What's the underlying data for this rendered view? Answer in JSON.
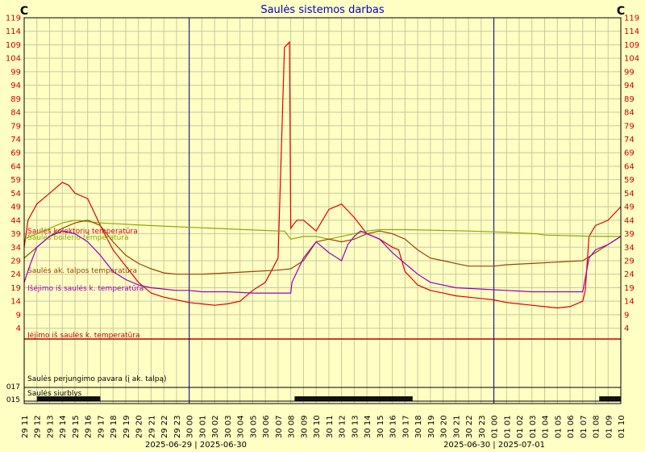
{
  "chart_data": {
    "type": "line",
    "title": "Saulės sistemos darbas",
    "unit": "C",
    "y_ticks": [
      4,
      9,
      14,
      19,
      24,
      29,
      34,
      39,
      44,
      49,
      54,
      59,
      64,
      69,
      74,
      79,
      84,
      89,
      94,
      99,
      104,
      109,
      114,
      119
    ],
    "x_tick_labels": [
      "29 11",
      "29 12",
      "29 13",
      "29 14",
      "29 15",
      "29 16",
      "29 17",
      "29 18",
      "29 19",
      "29 20",
      "29 21",
      "29 22",
      "29 23",
      "30 00",
      "30 01",
      "30 02",
      "30 03",
      "30 04",
      "30 05",
      "30 06",
      "30 07",
      "30 08",
      "30 09",
      "30 10",
      "30 11",
      "30 12",
      "30 13",
      "30 14",
      "30 15",
      "30 16",
      "30 17",
      "30 18",
      "30 19",
      "30 20",
      "30 21",
      "30 22",
      "30 23",
      "01 00",
      "01 01",
      "01 02",
      "01 03",
      "01 04",
      "01 05",
      "01 06",
      "01 07",
      "01 08",
      "01 09",
      "01 10"
    ],
    "day_labels": [
      "2025-06-29 | 2025-06-30",
      "2025-06-30 | 2025-07-01"
    ],
    "day_boundaries_hours": [
      13,
      37
    ],
    "x_range_hours": [
      0,
      47
    ],
    "y_range": [
      0,
      119
    ],
    "grid": true,
    "series": [
      {
        "name": "Saulės kolektorių temperatūra",
        "color": "#e00000",
        "x": [
          0,
          0.3,
          1,
          2,
          3,
          3.5,
          4,
          5,
          6,
          7,
          8,
          9,
          10,
          11,
          12,
          13,
          14,
          15,
          16,
          17,
          18,
          19,
          20,
          20.5,
          20.9,
          21,
          21.3,
          21.5,
          22,
          22.5,
          23,
          24,
          25,
          26,
          26.5,
          27,
          28,
          29,
          29.5,
          30,
          31,
          32,
          33,
          34,
          35,
          36,
          37,
          38,
          39,
          40,
          41,
          42,
          43,
          44,
          44.2,
          44.5,
          45,
          46,
          47
        ],
        "y": [
          34,
          44,
          50,
          54,
          58,
          57,
          54,
          52,
          42,
          33,
          27,
          21,
          17,
          15.5,
          14.5,
          13.5,
          13,
          12.5,
          13,
          14,
          18,
          21,
          30,
          108,
          110,
          41,
          43,
          44,
          44,
          42,
          40,
          48,
          50,
          45,
          42,
          39,
          37,
          34,
          33,
          25,
          20,
          18,
          17,
          16,
          15.5,
          15,
          14.5,
          13.5,
          13,
          12.5,
          12,
          11.5,
          12,
          14,
          18,
          38,
          42,
          44,
          49
        ]
      },
      {
        "name": "Saulės boilerio temperatūra",
        "color": "#88aa00",
        "x": [
          0,
          1,
          2,
          3,
          4,
          5,
          6,
          10,
          15,
          20,
          20.5,
          21,
          22,
          23,
          24,
          25,
          26,
          27,
          28,
          30,
          35,
          38,
          40.4,
          41,
          45,
          47
        ],
        "y": [
          37,
          39,
          41,
          43,
          44,
          43.5,
          43,
          42,
          41,
          40,
          40,
          37,
          38,
          38,
          37,
          38,
          39,
          40,
          40.5,
          40.5,
          40,
          39.5,
          39,
          38.5,
          38,
          38
        ]
      },
      {
        "name": "Saulės ak. talpos temperatūra",
        "color": "#994400",
        "x": [
          0,
          1,
          2,
          3,
          4,
          5,
          6,
          7,
          8,
          9,
          10,
          11,
          12,
          13,
          14,
          16,
          18,
          20,
          21,
          22,
          23,
          24,
          25,
          26,
          27,
          28,
          29,
          30,
          31,
          32,
          33,
          34,
          35,
          36,
          37,
          38,
          40,
          42,
          44,
          45,
          46,
          47
        ],
        "y": [
          30,
          34,
          38,
          41,
          43,
          44,
          42,
          36,
          31,
          28,
          26,
          24.5,
          24,
          24,
          24,
          24.5,
          25,
          25.5,
          26,
          29,
          36,
          37,
          36,
          37,
          39,
          40,
          39,
          37,
          33,
          30,
          29,
          28,
          27,
          27,
          27,
          27.5,
          28,
          28.5,
          29,
          32,
          35,
          38
        ]
      },
      {
        "name": "Išėjimo iš saulės k. temperatūra",
        "color": "#9900bb",
        "x": [
          0,
          0.5,
          1,
          2,
          3,
          4,
          5,
          6,
          7,
          8,
          9,
          10,
          11,
          12,
          13,
          14,
          16,
          18,
          20,
          21,
          21.1,
          22,
          23,
          24,
          25,
          25.5,
          26,
          26.5,
          27,
          28,
          29,
          30,
          31,
          32,
          34,
          36,
          38,
          40,
          42,
          44,
          44.5,
          45,
          46,
          47
        ],
        "y": [
          21,
          28,
          34,
          38,
          40,
          39,
          36,
          31,
          25,
          22,
          20,
          19,
          18.5,
          18,
          18,
          17.5,
          17.5,
          17,
          17,
          17,
          21,
          30,
          36,
          32,
          29,
          35,
          38,
          40,
          39,
          37,
          32,
          28,
          24,
          21,
          19,
          18.5,
          18,
          17.5,
          17.5,
          17.5,
          30,
          33,
          35,
          38
        ]
      },
      {
        "name": "Įėjimo iš saulės k. temperatūra",
        "color": "#bb0000",
        "x": [
          0,
          47
        ],
        "y": [
          0,
          0
        ]
      }
    ],
    "digital_series": [
      {
        "name": "Saulės perjungimo pavara (į ak. talpą)",
        "color": "#000000",
        "state_low": "017",
        "on_intervals": []
      },
      {
        "name": "Saulės siurblys",
        "color": "#000000",
        "state_low": "015",
        "on_intervals": [
          [
            1,
            6
          ],
          [
            21.3,
            30.6
          ],
          [
            45.3,
            47
          ]
        ]
      }
    ]
  }
}
